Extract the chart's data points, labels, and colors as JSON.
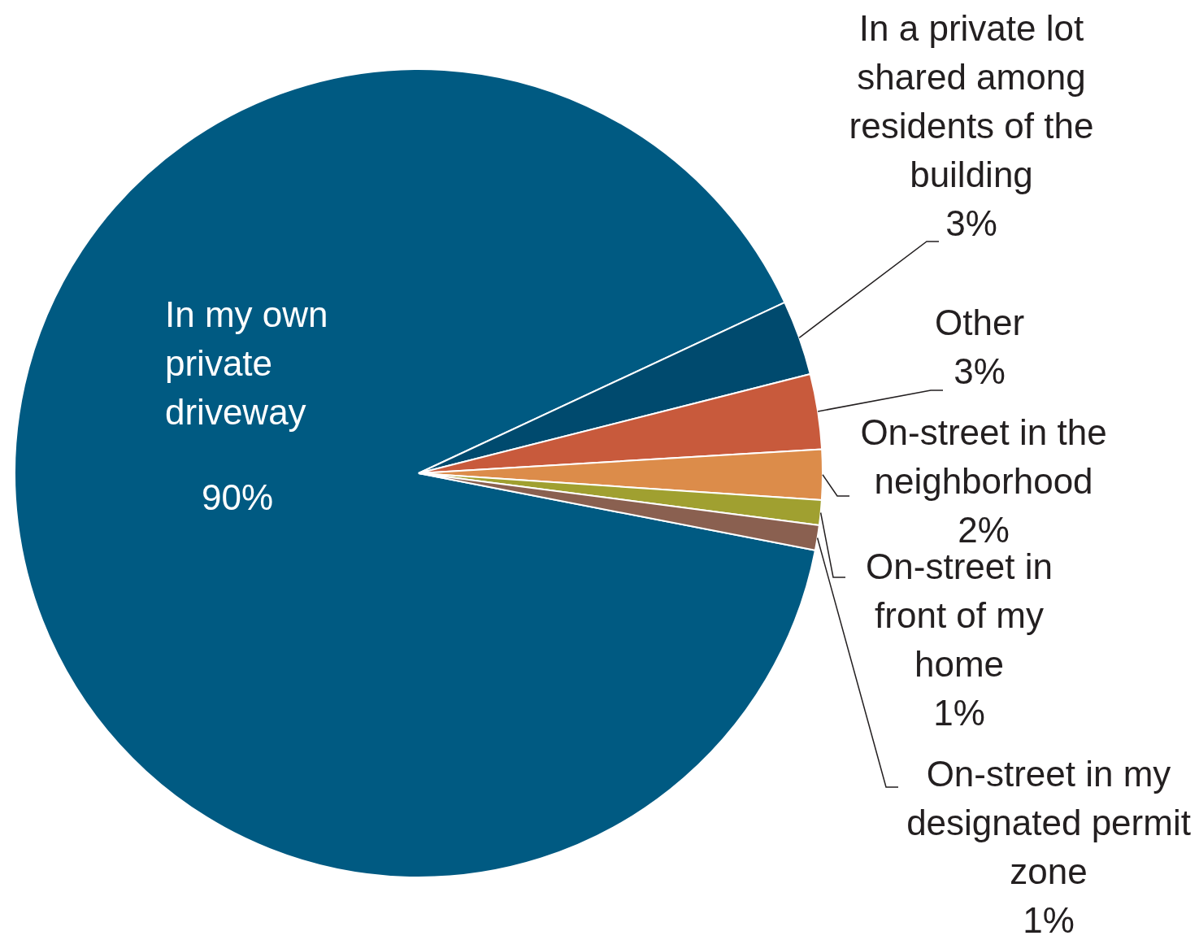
{
  "chart_data": {
    "type": "pie",
    "categories": [
      "In my own private driveway",
      "In a private lot shared among residents of the building",
      "Other",
      "On-street in the neighborhood",
      "On-street in front of my home",
      "On-street in my designated permit zone"
    ],
    "values": [
      90,
      3,
      3,
      2,
      1,
      1
    ],
    "value_labels": [
      "90%",
      "3%",
      "3%",
      "2%",
      "1%",
      "1%"
    ],
    "colors": [
      "#005a82",
      "#004a6e",
      "#c85a3c",
      "#dc8c4a",
      "#a0a030",
      "#8a6050"
    ],
    "legend": false
  }
}
